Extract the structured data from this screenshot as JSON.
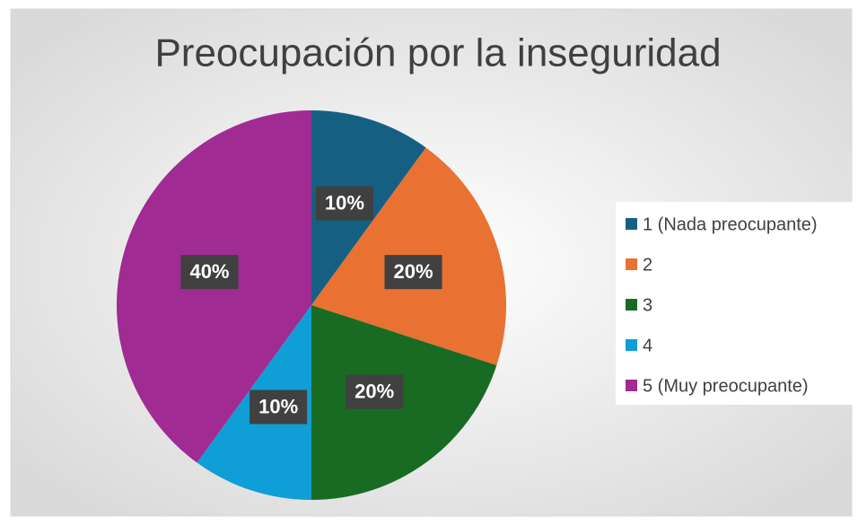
{
  "chart_data": {
    "type": "pie",
    "title": "Preocupación por la inseguridad",
    "categories": [
      "1 (Nada preocupante)",
      "2",
      "3",
      "4",
      "5 (Muy preocupante)"
    ],
    "values": [
      10,
      20,
      20,
      10,
      40
    ],
    "value_labels": [
      "10%",
      "20%",
      "20%",
      "10%",
      "40%"
    ],
    "colors": [
      "#156082",
      "#e97132",
      "#196b24",
      "#0f9ed5",
      "#a02b93"
    ],
    "legend": "right"
  }
}
